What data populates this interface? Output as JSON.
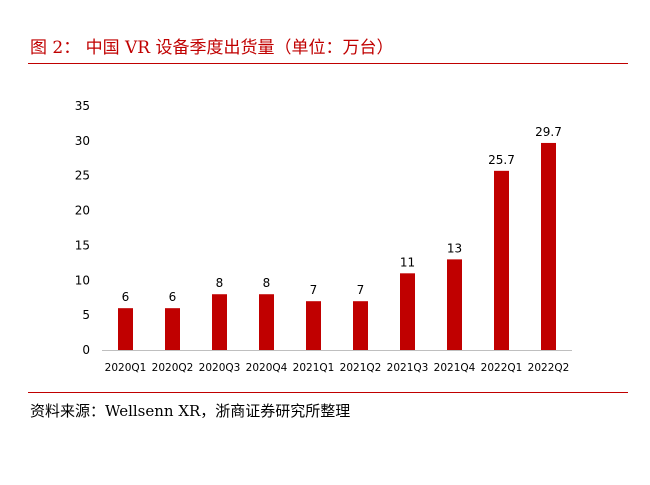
{
  "figure": {
    "title": "图 2：  中国 VR 设备季度出货量（单位：万台）",
    "source": "资料来源：Wellsenn XR，浙商证券研究所整理",
    "accent_color": "#c00000"
  },
  "chart_data": {
    "type": "bar",
    "categories": [
      "2020Q1",
      "2020Q2",
      "2020Q3",
      "2020Q4",
      "2021Q1",
      "2021Q2",
      "2021Q3",
      "2021Q4",
      "2022Q1",
      "2022Q2"
    ],
    "values": [
      6,
      6,
      8,
      8,
      7,
      7,
      11,
      13,
      25.7,
      29.7
    ],
    "data_labels": [
      "6",
      "6",
      "8",
      "8",
      "7",
      "7",
      "11",
      "13",
      "25.7",
      "29.7"
    ],
    "yticks": [
      "0",
      "5",
      "10",
      "15",
      "20",
      "25",
      "30",
      "35"
    ],
    "ylim": [
      0,
      35
    ],
    "bar_color": "#c00000",
    "grid": false,
    "legend": "none"
  }
}
